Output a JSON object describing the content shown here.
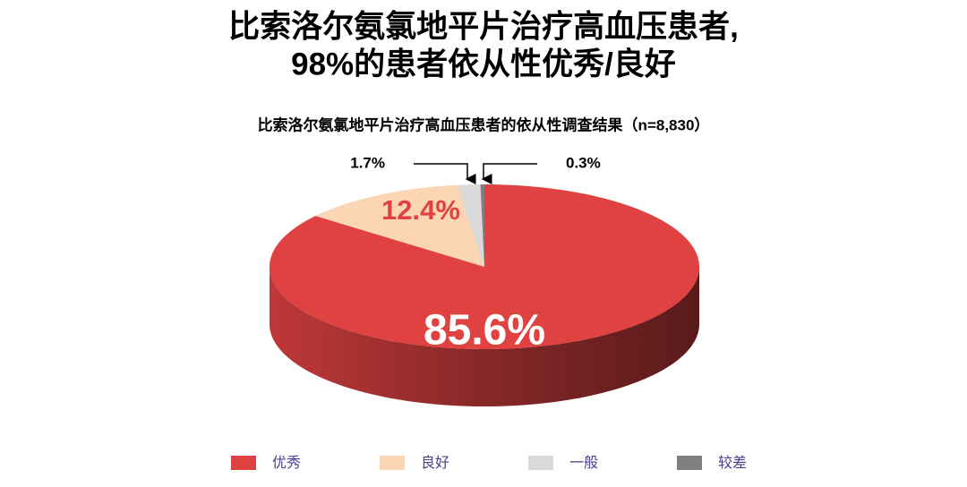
{
  "chart_data": {
    "type": "pie",
    "title": [
      "比索洛尔氨氯地平片治疗高血压患者,",
      "98%的患者依从性优秀/良好"
    ],
    "subtitle": "比索洛尔氨氯地平片治疗高血压患者的依从性调查结果（n=8,830）",
    "categories": [
      "优秀",
      "良好",
      "一般",
      "较差"
    ],
    "values": [
      85.6,
      12.4,
      1.7,
      0.3
    ],
    "value_labels": [
      "85.6%",
      "12.4%",
      "1.7%",
      "0.3%"
    ],
    "colors": [
      "#e04242",
      "#fcd5b5",
      "#d9d9d9",
      "#7f7f7f"
    ]
  }
}
